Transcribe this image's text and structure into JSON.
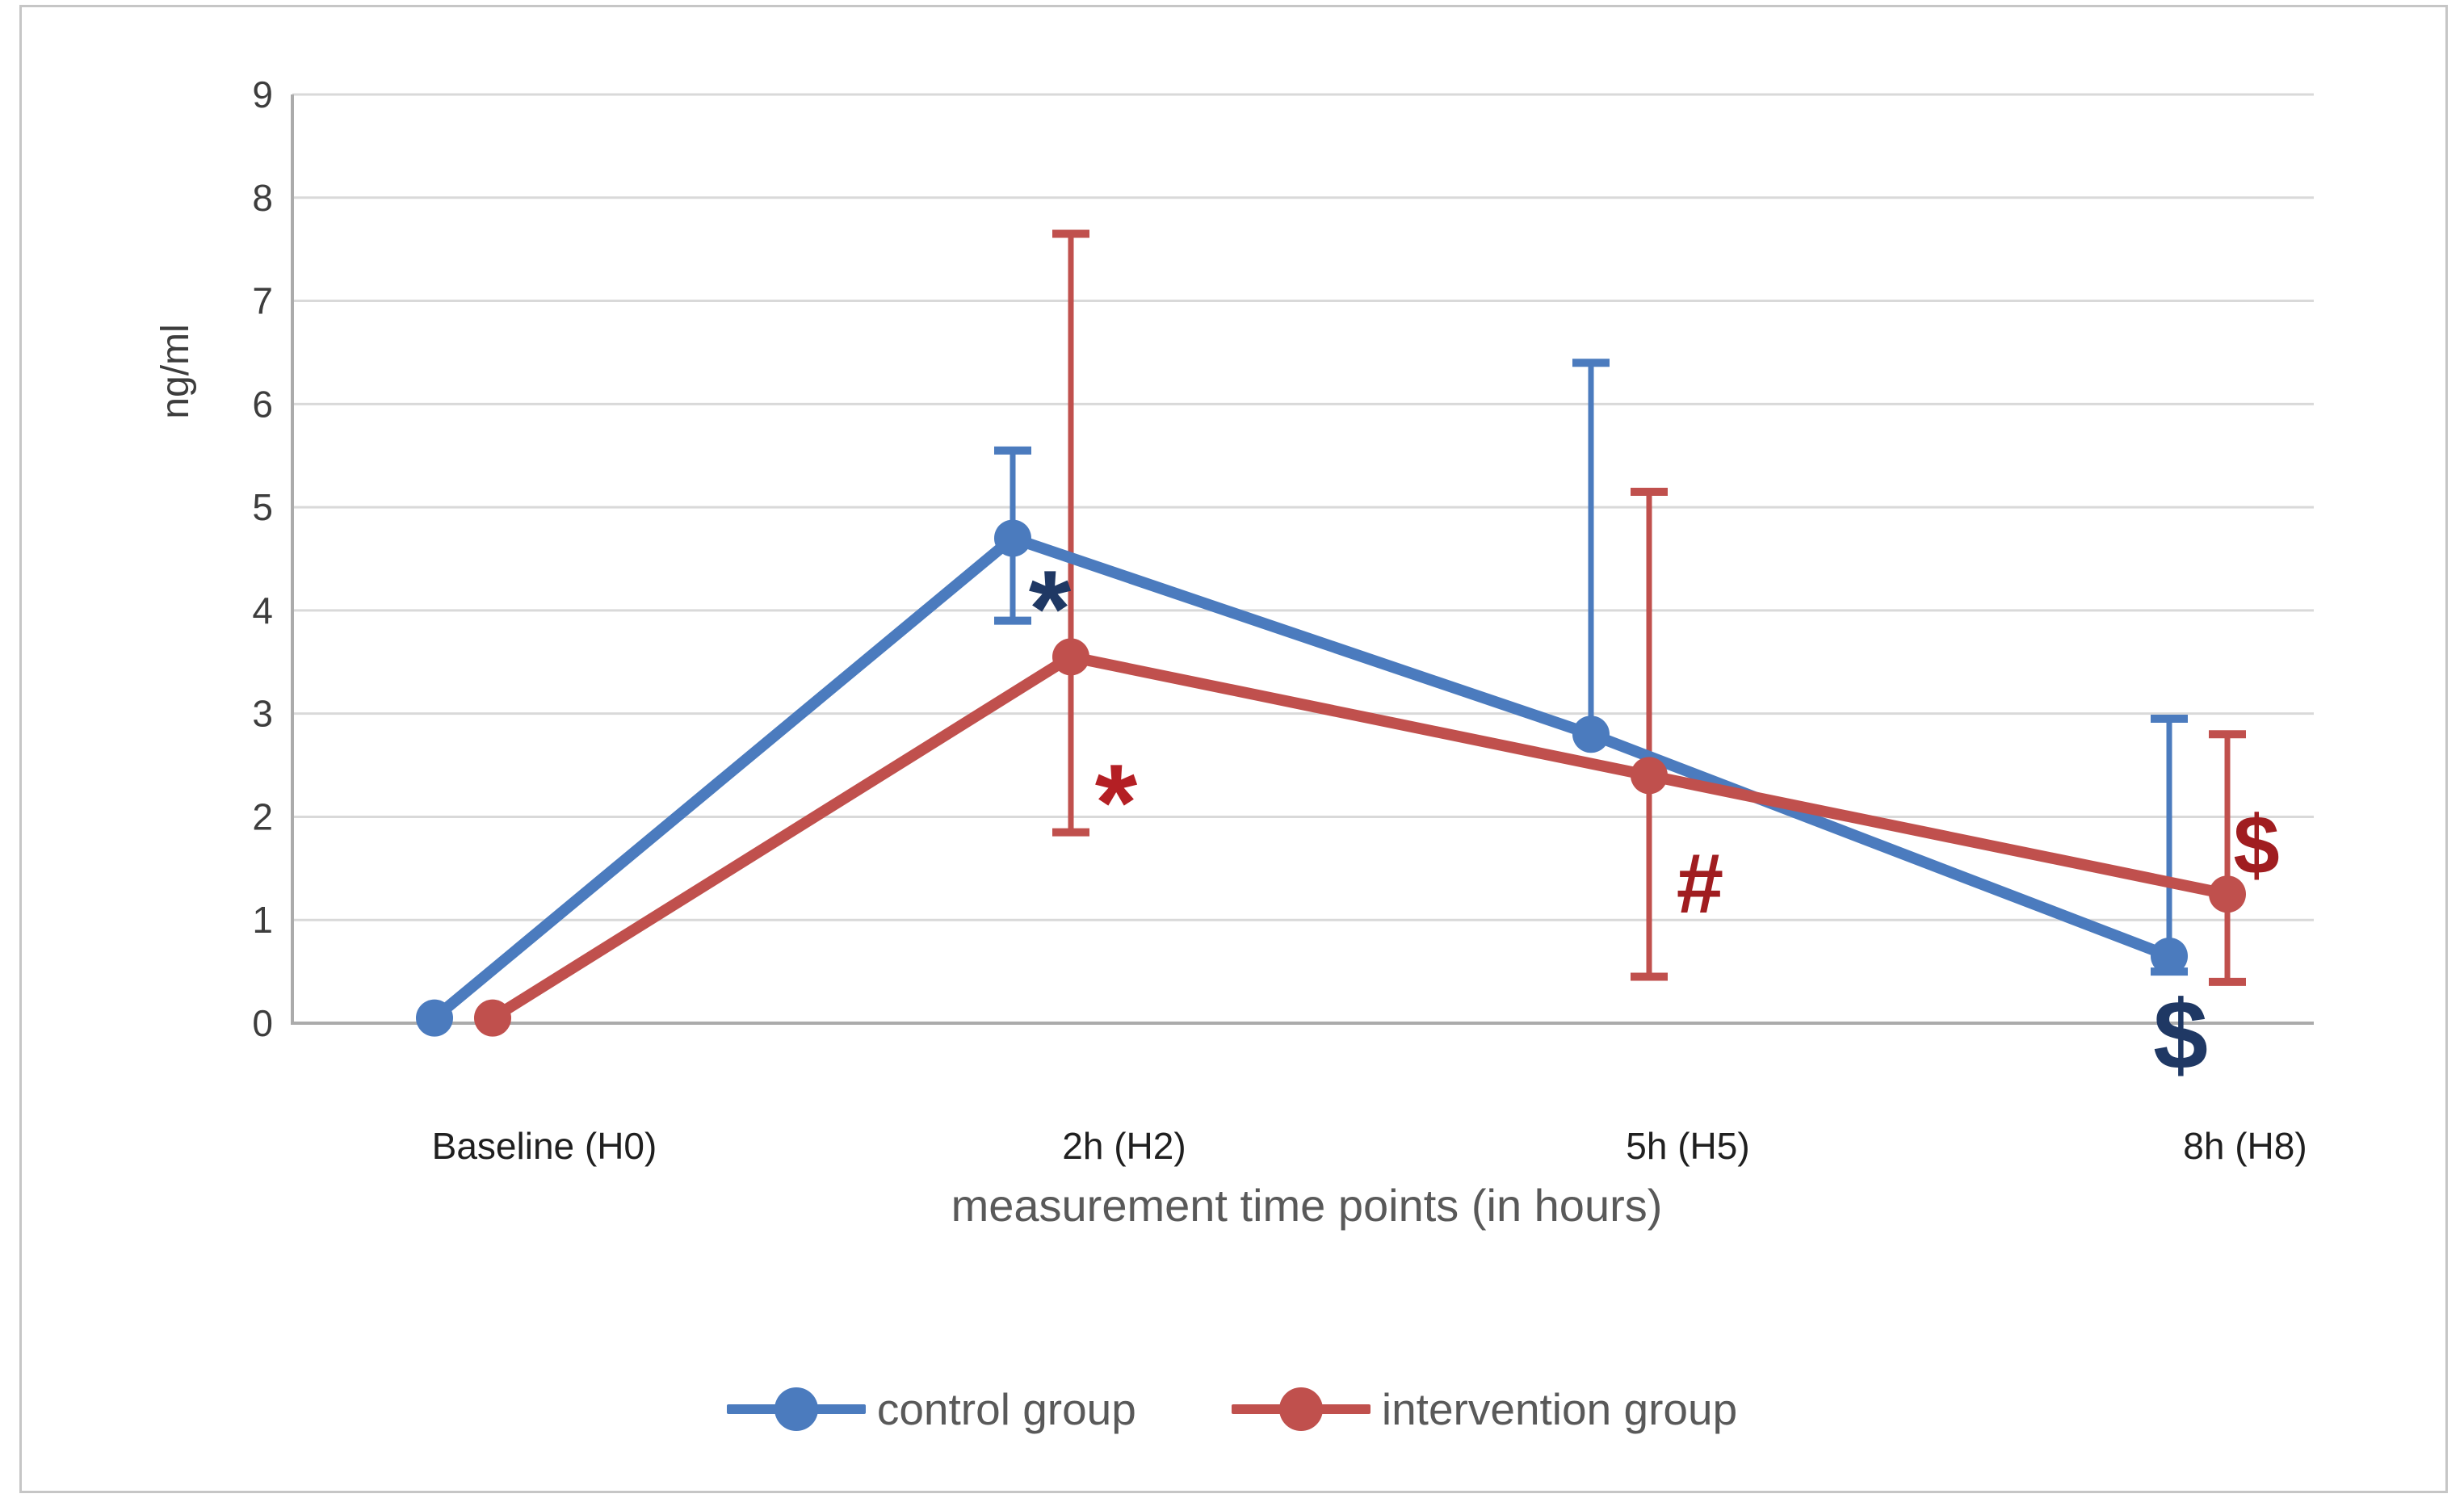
{
  "chart_data": {
    "type": "line",
    "title": "",
    "ylabel": "ng/ml",
    "xlabel": "measurement time points (in hours)",
    "categories": [
      "Baseline (H0)",
      "2h (H2)",
      "5h (H5)",
      "8h (H8)"
    ],
    "ylim": [
      0,
      9
    ],
    "yticks": [
      0,
      1,
      2,
      3,
      4,
      5,
      6,
      7,
      8,
      9
    ],
    "grid": true,
    "legend_position": "bottom",
    "series": [
      {
        "name": "control group",
        "color": "#4b7bbe",
        "values": [
          0.05,
          4.7,
          2.8,
          0.65
        ],
        "error_low": [
          null,
          3.9,
          null,
          0.5
        ],
        "error_high": [
          null,
          5.55,
          6.4,
          2.95
        ]
      },
      {
        "name": "intervention group",
        "color": "#c0504d",
        "values": [
          0.05,
          3.55,
          2.4,
          1.25
        ],
        "error_low": [
          null,
          1.85,
          0.45,
          0.4
        ],
        "error_high": [
          null,
          7.65,
          5.15,
          2.8
        ]
      }
    ],
    "annotations": [
      {
        "text": "*",
        "color": "#1f3864",
        "refers_to": "control group at 2h (H2)"
      },
      {
        "text": "*",
        "color": "#b41f24",
        "refers_to": "intervention group at 2h (H2)"
      },
      {
        "text": "#",
        "color": "#a01d20",
        "refers_to": "intervention group at 5h (H5)"
      },
      {
        "text": "$",
        "color": "#1f3864",
        "refers_to": "control group at 8h (H8)"
      },
      {
        "text": "$",
        "color": "#a01d20",
        "refers_to": "intervention group at 8h (H8)"
      }
    ],
    "colors": {
      "gridline": "#d9d9d9",
      "axis_line": "#ababab",
      "y_tick_text": "#3d3d3d",
      "x_tick_text": "#1f1f1f",
      "axis_title_text": "#595959",
      "legend_text": "#595959"
    }
  }
}
